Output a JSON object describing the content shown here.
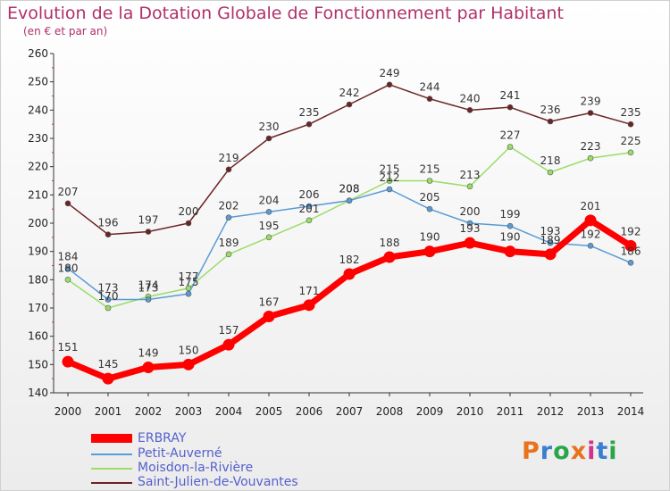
{
  "title": "Evolution de la Dotation Globale de Fonctionnement par Habitant",
  "subtitle": "(en € et par an)",
  "logo": {
    "text": "Proxiti",
    "colors": [
      "#e8731c",
      "#3a7fd0",
      "#2aa64a",
      "#e8731c",
      "#d0328c",
      "#3a7fd0",
      "#2aa64a"
    ]
  },
  "colors": {
    "ERBRAY": "#ff0000",
    "Petit-Auverné": "#5a9bd4",
    "Moisdon-la-Rivière": "#99dd66",
    "Saint-Julien-de-Vouvantes": "#6b2424",
    "title": "#b0306a",
    "legend_text": "#5560cc"
  },
  "chart_data": {
    "type": "line",
    "title": "Evolution de la Dotation Globale de Fonctionnement par Habitant",
    "subtitle": "(en € et par an)",
    "x": [
      "2000",
      "2001",
      "2002",
      "2003",
      "2004",
      "2005",
      "2006",
      "2007",
      "2008",
      "2009",
      "2010",
      "2011",
      "2012",
      "2013",
      "2014"
    ],
    "ylim": [
      140,
      260
    ],
    "yticks": [
      140,
      150,
      160,
      170,
      180,
      190,
      200,
      210,
      220,
      230,
      240,
      250,
      260
    ],
    "grid": false,
    "legend_position": "bottom-left",
    "series": [
      {
        "name": "Saint-Julien-de-Vouvantes",
        "values": [
          207,
          196,
          197,
          200,
          219,
          230,
          235,
          242,
          249,
          244,
          240,
          241,
          236,
          239,
          235
        ]
      },
      {
        "name": "Moisdon-la-Rivière",
        "values": [
          180,
          170,
          174,
          177,
          189,
          195,
          201,
          208,
          215,
          215,
          213,
          227,
          218,
          223,
          225
        ]
      },
      {
        "name": "Petit-Auverné",
        "values": [
          184,
          173,
          173,
          175,
          202,
          204,
          206,
          208,
          212,
          205,
          200,
          199,
          193,
          192,
          186
        ]
      },
      {
        "name": "ERBRAY",
        "values": [
          151,
          145,
          149,
          150,
          157,
          167,
          171,
          182,
          188,
          190,
          193,
          190,
          189,
          201,
          192
        ]
      }
    ],
    "legend": [
      "ERBRAY",
      "Petit-Auverné",
      "Moisdon-la-Rivière",
      "Saint-Julien-de-Vouvantes"
    ]
  }
}
